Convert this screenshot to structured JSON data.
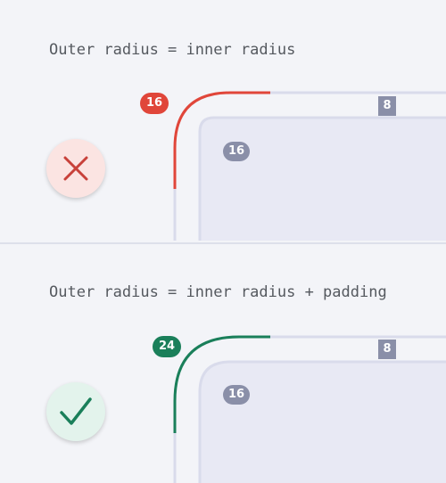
{
  "panels": [
    {
      "id": "bad",
      "caption": "Outer radius = inner radius",
      "outer_radius_label": "16",
      "inner_radius_label": "16",
      "padding_label": "8",
      "status_icon": "cross-icon",
      "accent": "#e0463a",
      "status_bg": "#fbe4e2",
      "status_stroke": "#c8413a"
    },
    {
      "id": "good",
      "caption": "Outer radius = inner radius + padding",
      "outer_radius_label": "24",
      "inner_radius_label": "16",
      "padding_label": "8",
      "status_icon": "checkmark-icon",
      "accent": "#1a7f5a",
      "status_bg": "#e3f3ec",
      "status_stroke": "#1a7f5a"
    }
  ],
  "colors": {
    "background": "#f3f4f8",
    "outline": "#d9dbeb",
    "inner_fill": "#e8e9f4",
    "badge_neutral": "#8a8fa8"
  }
}
